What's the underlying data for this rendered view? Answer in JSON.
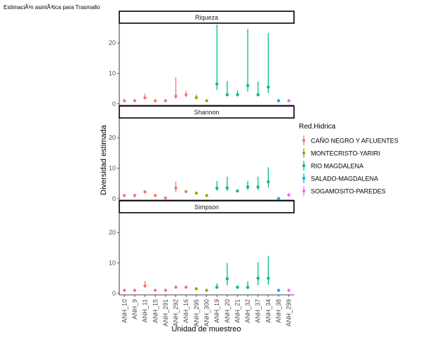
{
  "chart_data": {
    "type": "scatter",
    "title": "EstimaciÃ³n asintÃ³tica para  Trasmallo",
    "xlabel": "Unidad de muestreo",
    "ylabel": "Diversidad estimada",
    "ylim": [
      -0.5,
      26.5
    ],
    "yticks": [
      0,
      10,
      20
    ],
    "legend_title": "Red.Hidrica",
    "legend_position": "right",
    "groups": [
      {
        "name": "CAÑO NEGRO Y AFLUENTES",
        "color": "#F8766D"
      },
      {
        "name": "MONTECRISTO-YARIRI",
        "color": "#A3A500"
      },
      {
        "name": "RIO MAGDALENA",
        "color": "#00BF7D"
      },
      {
        "name": "SALADO-MAGDALENA",
        "color": "#00B0F6"
      },
      {
        "name": "SOGAMOSITO-PAREDES",
        "color": "#E76BF3"
      }
    ],
    "categories": [
      "ANH_10",
      "ANH_9",
      "ANH_11",
      "ANH_15",
      "ANH_291",
      "ANH_292",
      "ANH_16",
      "ANH_295",
      "ANH_300",
      "ANH_19",
      "ANH_20",
      "ANH_21",
      "ANH_32",
      "ANH_37",
      "ANH_34",
      "ANH_38",
      "ANH_299"
    ],
    "category_group": [
      0,
      0,
      0,
      0,
      0,
      0,
      0,
      1,
      1,
      2,
      2,
      2,
      2,
      2,
      2,
      3,
      4
    ],
    "panels": [
      {
        "label": "Riqueza",
        "est": [
          1,
          1,
          2,
          1,
          1,
          2.5,
          3,
          2,
          1,
          6.5,
          3,
          3,
          6,
          3,
          5.5,
          1,
          1
        ],
        "lcl": [
          1,
          1,
          1.6,
          1,
          1,
          1.6,
          2.2,
          1.6,
          1,
          4.5,
          2.4,
          2.4,
          4,
          2.4,
          3.5,
          1,
          1
        ],
        "ucl": [
          1,
          1,
          3.3,
          1,
          1,
          8.7,
          4.2,
          3.1,
          1,
          26,
          7.5,
          4.5,
          24.6,
          7.3,
          23.3,
          1,
          1
        ]
      },
      {
        "label": "Shannon",
        "est": [
          1,
          1,
          2.2,
          1,
          0.2,
          3.5,
          2.3,
          1.8,
          1,
          3.4,
          3.5,
          2.5,
          3.8,
          3.8,
          5.5,
          0,
          1.2
        ],
        "lcl": [
          1,
          1,
          1.7,
          1,
          0.2,
          2.2,
          2,
          1.5,
          1,
          2.6,
          2.5,
          2.1,
          2.8,
          2.8,
          3.6,
          0,
          1.2
        ],
        "ucl": [
          1,
          1,
          2.8,
          1,
          0.2,
          5.6,
          2.8,
          2.2,
          1,
          5.8,
          7.2,
          3,
          5.8,
          7.2,
          10.3,
          0,
          1.2
        ]
      },
      {
        "label": "Simpson",
        "est": [
          1,
          1,
          2.5,
          1,
          1,
          2,
          2,
          1.5,
          1,
          2,
          4.8,
          2,
          2,
          5,
          5,
          1,
          1
        ],
        "lcl": [
          1,
          1,
          1.8,
          1,
          1,
          1.6,
          1.6,
          1.2,
          1,
          1.5,
          2.6,
          1.5,
          1.4,
          2.7,
          2.8,
          1,
          1
        ],
        "ucl": [
          1,
          1,
          4.1,
          1,
          1,
          2.6,
          2.6,
          1.9,
          1,
          3.3,
          10,
          2.6,
          4,
          10.2,
          12.3,
          1,
          1
        ]
      }
    ]
  }
}
